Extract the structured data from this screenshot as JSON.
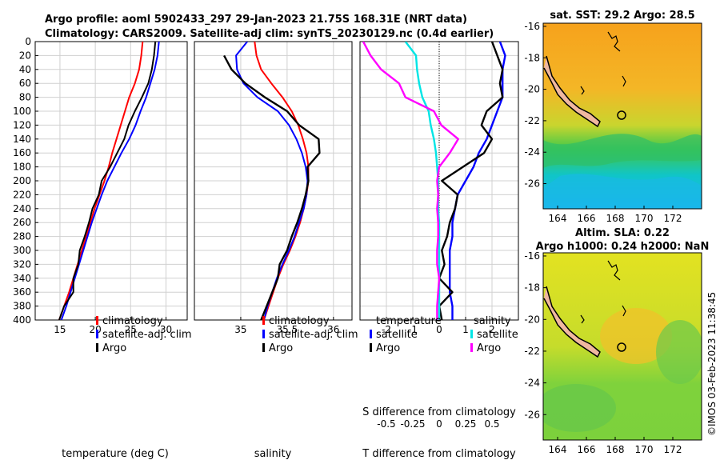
{
  "header": {
    "line1": "Argo profile: aoml 5902433_297 29-Jan-2023 21.75S 168.31E (NRT data)",
    "line2": "Climatology: CARS2009. Satellite-adj clim: synTS_20230129.nc (0.4d earlier)"
  },
  "colors": {
    "climatology": "#ff0000",
    "satellite": "#0000ff",
    "argo": "#000000",
    "t_diff_sat": "#0000ff",
    "s_diff_sat": "#00e5e5",
    "s_diff_argo": "#ff00ff"
  },
  "depth_ticks": [
    0,
    20,
    40,
    60,
    80,
    100,
    120,
    140,
    160,
    180,
    200,
    220,
    240,
    260,
    280,
    300,
    320,
    340,
    360,
    380,
    400
  ],
  "chart_data": [
    {
      "type": "line",
      "title": "",
      "xlabel": "temperature (deg C)",
      "ylabel": "depth",
      "xlim": [
        11.5,
        33
      ],
      "ylim": [
        400,
        0
      ],
      "xticks": [
        15,
        20,
        25,
        30
      ],
      "legend": [
        "climatology",
        "satellite-adj. clim",
        "Argo"
      ],
      "series": [
        {
          "name": "climatology",
          "depth": [
            0,
            20,
            40,
            60,
            80,
            100,
            120,
            140,
            160,
            180,
            200,
            220,
            240,
            260,
            280,
            300,
            320,
            340,
            360,
            380,
            400
          ],
          "values": [
            26.7,
            26.5,
            26.2,
            25.6,
            24.8,
            24.2,
            23.6,
            23.0,
            22.4,
            21.9,
            21.3,
            20.6,
            19.9,
            19.3,
            18.7,
            18.1,
            17.5,
            16.9,
            16.3,
            15.6,
            14.9
          ]
        },
        {
          "name": "satellite-adj. clim",
          "depth": [
            0,
            20,
            40,
            60,
            80,
            100,
            120,
            140,
            160,
            180,
            200,
            220,
            240,
            260,
            280,
            300,
            320,
            340,
            360,
            380,
            400
          ],
          "values": [
            29.0,
            28.8,
            28.4,
            27.8,
            27.2,
            26.4,
            25.7,
            24.8,
            23.7,
            22.7,
            21.7,
            20.9,
            20.2,
            19.5,
            18.9,
            18.3,
            17.7,
            17.1,
            16.5,
            15.9,
            15.2
          ]
        },
        {
          "name": "Argo",
          "depth": [
            0,
            20,
            40,
            60,
            80,
            100,
            120,
            140,
            160,
            180,
            200,
            220,
            240,
            260,
            280,
            300,
            320,
            340,
            360,
            380,
            400
          ],
          "values": [
            28.5,
            28.3,
            28.0,
            27.5,
            26.6,
            25.6,
            24.7,
            24.1,
            23.1,
            22.1,
            20.9,
            20.5,
            19.6,
            19.1,
            18.5,
            17.8,
            17.6,
            16.9,
            16.9,
            15.6,
            14.9
          ]
        }
      ]
    },
    {
      "type": "line",
      "title": "",
      "xlabel": "salinity",
      "ylabel": "",
      "xlim": [
        34.5,
        36.2
      ],
      "ylim": [
        400,
        0
      ],
      "xticks": [
        35,
        35.5,
        36
      ],
      "legend": [
        "climatology",
        "satellite-adj. clim",
        "Argo"
      ],
      "series": [
        {
          "name": "climatology",
          "depth": [
            0,
            20,
            40,
            60,
            80,
            100,
            120,
            140,
            160,
            180,
            200,
            220,
            240,
            260,
            280,
            300,
            320,
            340,
            360,
            380,
            400
          ],
          "values": [
            35.15,
            35.17,
            35.22,
            35.33,
            35.45,
            35.55,
            35.62,
            35.67,
            35.71,
            35.73,
            35.73,
            35.71,
            35.68,
            35.64,
            35.59,
            35.53,
            35.46,
            35.4,
            35.35,
            35.3,
            35.25
          ]
        },
        {
          "name": "satellite-adj. clim",
          "depth": [
            0,
            20,
            40,
            60,
            80,
            100,
            120,
            140,
            160,
            180,
            200,
            220,
            240,
            260,
            280,
            300,
            320,
            340,
            360,
            380,
            400
          ],
          "values": [
            35.07,
            34.95,
            34.96,
            35.03,
            35.18,
            35.4,
            35.52,
            35.6,
            35.66,
            35.7,
            35.72,
            35.71,
            35.68,
            35.63,
            35.58,
            35.52,
            35.45,
            35.39,
            35.34,
            35.29,
            35.25
          ]
        },
        {
          "name": "Argo",
          "depth": [
            0,
            20,
            40,
            60,
            80,
            100,
            120,
            140,
            160,
            180,
            200,
            220,
            240,
            260,
            280,
            300,
            320,
            340,
            360,
            380,
            400
          ],
          "values": [
            null,
            34.82,
            34.9,
            35.05,
            35.26,
            35.5,
            35.63,
            35.84,
            35.85,
            35.72,
            35.73,
            35.7,
            35.66,
            35.61,
            35.55,
            35.5,
            35.42,
            35.4,
            35.34,
            35.28,
            35.22
          ]
        }
      ]
    },
    {
      "type": "line",
      "title": "",
      "xlabel": "T difference from climatology",
      "x2label": "S difference from climatology",
      "ylabel": "",
      "xlim": [
        -3,
        3
      ],
      "x2lim": [
        -0.75,
        0.75
      ],
      "ylim": [
        400,
        0
      ],
      "xticks": [
        -2,
        -1,
        0,
        1,
        2
      ],
      "x2ticks": [
        "-0.5",
        "-0.25",
        "0",
        "0.25",
        "0.5"
      ],
      "legend_left_title": "temperature",
      "legend_right_title": "salinity",
      "legend_labels": [
        "satellite",
        "Argo",
        "satellite",
        "Argo"
      ],
      "series": [
        {
          "name": "T satellite",
          "depth": [
            0,
            20,
            40,
            60,
            80,
            100,
            120,
            140,
            160,
            180,
            200,
            220,
            240,
            260,
            280,
            300,
            320,
            340,
            360,
            380,
            400
          ],
          "values": [
            2.3,
            2.5,
            2.4,
            2.4,
            2.4,
            2.2,
            2.0,
            1.8,
            1.5,
            1.3,
            1.0,
            0.7,
            0.6,
            0.5,
            0.5,
            0.4,
            0.4,
            0.4,
            0.4,
            0.5,
            0.5
          ]
        },
        {
          "name": "T Argo",
          "depth": [
            0,
            20,
            40,
            60,
            80,
            100,
            120,
            140,
            160,
            180,
            200,
            220,
            240,
            260,
            280,
            300,
            320,
            340,
            360,
            380,
            400
          ],
          "values": [
            2.0,
            2.2,
            2.4,
            2.3,
            2.4,
            1.8,
            1.6,
            2.0,
            1.7,
            0.9,
            0.1,
            0.7,
            0.6,
            0.4,
            0.3,
            0.1,
            0.2,
            0.0,
            0.5,
            0.0,
            0.1
          ]
        },
        {
          "name": "S satellite",
          "depth": [
            0,
            20,
            40,
            60,
            80,
            100,
            120,
            140,
            160,
            180,
            200,
            220,
            240,
            260,
            280,
            300,
            320,
            340,
            360,
            380,
            400
          ],
          "values": [
            -0.32,
            -0.22,
            -0.21,
            -0.19,
            -0.16,
            -0.1,
            -0.08,
            -0.05,
            -0.03,
            -0.02,
            -0.01,
            -0.01,
            -0.01,
            0.0,
            0.0,
            0.0,
            0.0,
            0.0,
            0.0,
            0.0,
            0.0
          ]
        },
        {
          "name": "S Argo",
          "depth": [
            0,
            20,
            40,
            60,
            80,
            100,
            120,
            140,
            160,
            180,
            200,
            220,
            240,
            260,
            280,
            300,
            320,
            340,
            360,
            380,
            400
          ],
          "values": [
            -0.72,
            -0.65,
            -0.55,
            -0.38,
            -0.32,
            -0.05,
            0.02,
            0.18,
            0.1,
            0.0,
            -0.02,
            -0.01,
            -0.02,
            -0.01,
            -0.01,
            -0.02,
            -0.02,
            0.0,
            -0.01,
            -0.02,
            -0.02
          ]
        }
      ]
    },
    {
      "type": "heatmap",
      "title": "sat. SST: 29.2 Argo: 28.5",
      "xlim": [
        163,
        174
      ],
      "ylim": [
        -27.6,
        -15.8
      ],
      "xticks": [
        164,
        166,
        168,
        170,
        172
      ],
      "yticks": [
        -16,
        -18,
        -20,
        -22,
        -24,
        -26
      ]
    },
    {
      "type": "heatmap",
      "title_line1": "Altim. SLA: 0.22",
      "title_line2": "Argo h1000: 0.24 h2000: NaN",
      "xlim": [
        163,
        174
      ],
      "ylim": [
        -27.6,
        -15.8
      ],
      "xticks": [
        164,
        166,
        168,
        170,
        172
      ],
      "yticks": [
        -16,
        -18,
        -20,
        -22,
        -24,
        -26
      ]
    }
  ],
  "watermark": "©IMOS 03-Feb-2023 11:38:45"
}
